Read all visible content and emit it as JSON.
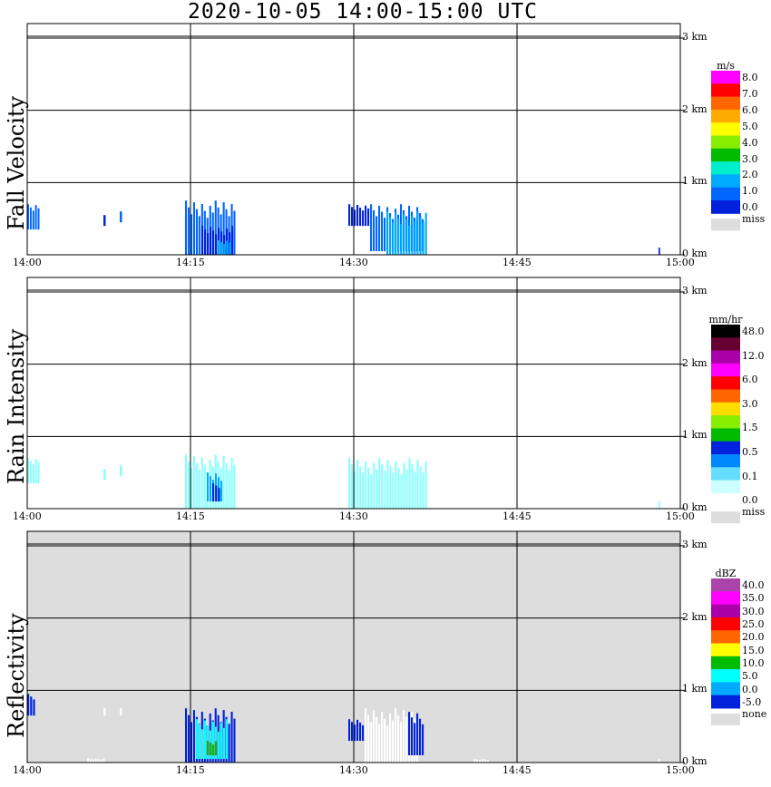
{
  "title": "2020-10-05   14:00-15:00 UTC",
  "chart_data": [
    {
      "type": "heatmap",
      "ylabel": "Fall Velocity",
      "x_ticks": [
        "14:00",
        "14:15",
        "14:30",
        "14:45",
        "15:00"
      ],
      "y_ticks": [
        "0 km",
        "1 km",
        "2 km",
        "3 km"
      ],
      "x_range_min": [
        0,
        60
      ],
      "y_range_km": [
        0,
        3.2
      ],
      "background": "#ffffff",
      "colorbar": {
        "unit": "m/s",
        "labels": [
          "8.0",
          "7.0",
          "6.0",
          "5.0",
          "4.0",
          "3.0",
          "2.0",
          "1.0",
          "0.0"
        ],
        "colors": [
          "#ff00ff",
          "#ff0000",
          "#ff6600",
          "#ffaa00",
          "#ffff00",
          "#88ee00",
          "#00bb00",
          "#00eecc",
          "#00aaff",
          "#0066ff",
          "#0022dd"
        ],
        "miss_label": "miss",
        "miss_color": "#dddddd"
      },
      "echoes": [
        {
          "t0": 0,
          "t1": 1.2,
          "h0": 0.35,
          "h1": 0.7,
          "color": "#0066ff"
        },
        {
          "t0": 7,
          "t1": 7.3,
          "h0": 0.4,
          "h1": 0.55,
          "color": "#0022dd"
        },
        {
          "t0": 8.5,
          "t1": 8.8,
          "h0": 0.45,
          "h1": 0.6,
          "color": "#0066ff"
        },
        {
          "t0": 14.5,
          "t1": 19.2,
          "h0": 0.0,
          "h1": 0.75,
          "color": "#0066ff"
        },
        {
          "t0": 16.0,
          "t1": 19.0,
          "h0": 0.0,
          "h1": 0.4,
          "color": "#0022dd"
        },
        {
          "t0": 17.5,
          "t1": 18.8,
          "h0": 0.0,
          "h1": 0.2,
          "color": "#00aaff"
        },
        {
          "t0": 29.5,
          "t1": 31.5,
          "h0": 0.4,
          "h1": 0.7,
          "color": "#0022dd"
        },
        {
          "t0": 31.5,
          "t1": 36.5,
          "h0": 0.05,
          "h1": 0.7,
          "color": "#0066ff"
        },
        {
          "t0": 33.0,
          "t1": 36.8,
          "h0": 0.0,
          "h1": 0.6,
          "color": "#00aaff"
        },
        {
          "t0": 58.0,
          "t1": 58.2,
          "h0": 0.0,
          "h1": 0.1,
          "color": "#0022dd"
        }
      ]
    },
    {
      "type": "heatmap",
      "ylabel": "Rain Intensity",
      "x_ticks": [
        "14:00",
        "14:15",
        "14:30",
        "14:45",
        "15:00"
      ],
      "y_ticks": [
        "0 km",
        "1 km",
        "2 km",
        "3 km"
      ],
      "x_range_min": [
        0,
        60
      ],
      "y_range_km": [
        0,
        3.2
      ],
      "background": "#ffffff",
      "colorbar": {
        "unit": "mm/hr",
        "labels": [
          "48.0",
          "12.0",
          "6.0",
          "3.0",
          "1.5",
          "0.5",
          "0.1",
          "0.0"
        ],
        "colors": [
          "#000000",
          "#660033",
          "#aa00aa",
          "#ff00ff",
          "#ff0000",
          "#ff6600",
          "#ffdd00",
          "#88ee00",
          "#00bb00",
          "#0022dd",
          "#0088ff",
          "#66ddff",
          "#ccffff",
          "#ffffff"
        ],
        "miss_label": "miss",
        "miss_color": "#dddddd"
      },
      "echoes": [
        {
          "t0": 0,
          "t1": 1.2,
          "h0": 0.35,
          "h1": 0.7,
          "color": "#88ffff"
        },
        {
          "t0": 7,
          "t1": 7.3,
          "h0": 0.4,
          "h1": 0.55,
          "color": "#88ffff"
        },
        {
          "t0": 8.5,
          "t1": 8.8,
          "h0": 0.45,
          "h1": 0.6,
          "color": "#88ffff"
        },
        {
          "t0": 14.5,
          "t1": 19.2,
          "h0": 0.0,
          "h1": 0.75,
          "color": "#88ffff"
        },
        {
          "t0": 16.5,
          "t1": 18.0,
          "h0": 0.1,
          "h1": 0.5,
          "color": "#00aaff"
        },
        {
          "t0": 17.0,
          "t1": 17.8,
          "h0": 0.1,
          "h1": 0.35,
          "color": "#0022dd"
        },
        {
          "t0": 29.5,
          "t1": 36.8,
          "h0": 0.0,
          "h1": 0.7,
          "color": "#88ffff"
        },
        {
          "t0": 58.0,
          "t1": 58.2,
          "h0": 0.0,
          "h1": 0.1,
          "color": "#88ffff"
        }
      ]
    },
    {
      "type": "heatmap",
      "ylabel": "Reflectivity",
      "x_ticks": [
        "14:00",
        "14:15",
        "14:30",
        "14:45",
        "15:00"
      ],
      "y_ticks": [
        "0 km",
        "1 km",
        "2 km",
        "3 km"
      ],
      "x_range_min": [
        0,
        60
      ],
      "y_range_km": [
        0,
        3.2
      ],
      "background": "#dddddd",
      "colorbar": {
        "unit": "dBZ",
        "labels": [
          "40.0",
          "35.0",
          "30.0",
          "25.0",
          "20.0",
          "15.0",
          "10.0",
          "5.0",
          "0.0",
          "-5.0"
        ],
        "colors": [
          "#aa44aa",
          "#ff00ff",
          "#aa00aa",
          "#ff0000",
          "#ff6600",
          "#ffff00",
          "#00bb00",
          "#00ffff",
          "#00aaff",
          "#0022dd"
        ],
        "miss_label": "none",
        "miss_color": "#dddddd"
      },
      "echoes": [
        {
          "t0": 0,
          "t1": 0.8,
          "h0": 0.65,
          "h1": 0.95,
          "color": "#0022dd"
        },
        {
          "t0": 7,
          "t1": 7.3,
          "h0": 0.65,
          "h1": 0.75,
          "color": "#ffffff"
        },
        {
          "t0": 8.5,
          "t1": 8.8,
          "h0": 0.65,
          "h1": 0.75,
          "color": "#ffffff"
        },
        {
          "t0": 5.5,
          "t1": 7.2,
          "h0": 0.0,
          "h1": 0.06,
          "color": "#ffffff"
        },
        {
          "t0": 14.5,
          "t1": 19.2,
          "h0": 0.0,
          "h1": 0.75,
          "color": "#0022dd"
        },
        {
          "t0": 15.5,
          "t1": 18.5,
          "h0": 0.05,
          "h1": 0.6,
          "color": "#00ffff"
        },
        {
          "t0": 16.5,
          "t1": 17.5,
          "h0": 0.1,
          "h1": 0.3,
          "color": "#00bb00"
        },
        {
          "t0": 29.5,
          "t1": 31.0,
          "h0": 0.3,
          "h1": 0.6,
          "color": "#0022dd"
        },
        {
          "t0": 31.0,
          "t1": 36.0,
          "h0": 0.0,
          "h1": 0.75,
          "color": "#ffffff"
        },
        {
          "t0": 35.0,
          "t1": 36.5,
          "h0": 0.1,
          "h1": 0.7,
          "color": "#0022dd"
        },
        {
          "t0": 41.0,
          "t1": 42.5,
          "h0": 0.0,
          "h1": 0.05,
          "color": "#ffffff"
        },
        {
          "t0": 58.0,
          "t1": 58.2,
          "h0": 0.0,
          "h1": 0.05,
          "color": "#ffffff"
        }
      ]
    }
  ]
}
